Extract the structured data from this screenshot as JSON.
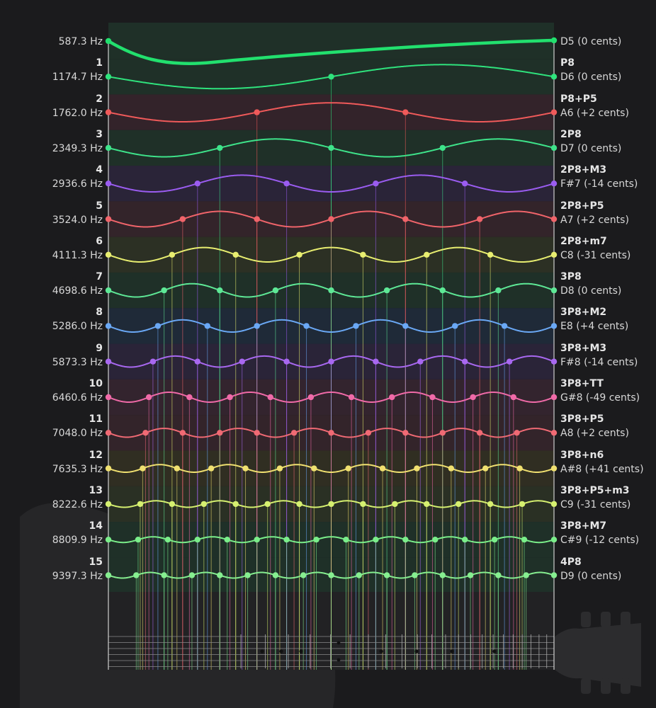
{
  "harmonics": [
    {
      "number": "",
      "freq": "587.3 Hz",
      "interval": "",
      "note": "D5 (0 cents)",
      "color": "#22e06e"
    },
    {
      "number": "1",
      "freq": "1174.7 Hz",
      "interval": "P8",
      "note": "D6 (0 cents)",
      "color": "#2fe37d"
    },
    {
      "number": "2",
      "freq": "1762.0 Hz",
      "interval": "P8+P5",
      "note": "A6 (+2 cents)",
      "color": "#f05a5a"
    },
    {
      "number": "3",
      "freq": "2349.3 Hz",
      "interval": "2P8",
      "note": "D7 (0 cents)",
      "color": "#3ee38a"
    },
    {
      "number": "4",
      "freq": "2936.6 Hz",
      "interval": "2P8+M3",
      "note": "F#7 (-14 cents)",
      "color": "#9a5cf0"
    },
    {
      "number": "5",
      "freq": "3524.0 Hz",
      "interval": "2P8+P5",
      "note": "A7 (+2 cents)",
      "color": "#f0646a"
    },
    {
      "number": "6",
      "freq": "4111.3 Hz",
      "interval": "2P8+m7",
      "note": "C8 (-31 cents)",
      "color": "#e8ee70"
    },
    {
      "number": "7",
      "freq": "4698.6 Hz",
      "interval": "3P8",
      "note": "D8 (0 cents)",
      "color": "#5ee896"
    },
    {
      "number": "8",
      "freq": "5286.0 Hz",
      "interval": "3P8+M2",
      "note": "E8 (+4 cents)",
      "color": "#6aa8f5"
    },
    {
      "number": "9",
      "freq": "5873.3 Hz",
      "interval": "3P8+M3",
      "note": "F#8 (-14 cents)",
      "color": "#a868f0"
    },
    {
      "number": "10",
      "freq": "6460.6 Hz",
      "interval": "3P8+TT",
      "note": "G#8 (-49 cents)",
      "color": "#f06aa8"
    },
    {
      "number": "11",
      "freq": "7048.0 Hz",
      "interval": "3P8+P5",
      "note": "A8 (+2 cents)",
      "color": "#f06a74"
    },
    {
      "number": "12",
      "freq": "7635.3 Hz",
      "interval": "3P8+n6",
      "note": "A#8 (+41 cents)",
      "color": "#f0e070"
    },
    {
      "number": "13",
      "freq": "8222.6 Hz",
      "interval": "3P8+P5+m3",
      "note": "C9 (-31 cents)",
      "color": "#d6f070"
    },
    {
      "number": "14",
      "freq": "8809.9 Hz",
      "interval": "3P8+M7",
      "note": "C#9 (-12 cents)",
      "color": "#7aee8a"
    },
    {
      "number": "15",
      "freq": "9397.3 Hz",
      "interval": "4P8",
      "note": "D9 (0 cents)",
      "color": "#86ee90"
    }
  ],
  "band_colors": [
    "#1f3028",
    "#1f3028",
    "#33232a",
    "#1f3028",
    "#2a2438",
    "#33242a",
    "#2c3024",
    "#1f3028",
    "#1f2a38",
    "#2a2438",
    "#33242e",
    "#33242a",
    "#302e22",
    "#2a3024",
    "#1f3028",
    "#1f3028"
  ],
  "icons": {
    "background": "guitar-silhouette-icon",
    "headstock": "guitar-headstock-icon"
  }
}
